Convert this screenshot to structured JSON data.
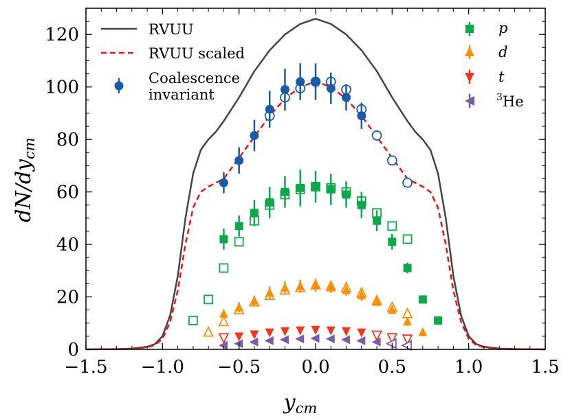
{
  "chart_data": {
    "type": "scatter",
    "xlabel": "y_cm",
    "ylabel": "dN/dy_cm",
    "xlim": [
      -1.5,
      1.5
    ],
    "ylim": [
      0,
      130
    ],
    "x_ticks": [
      -1.5,
      -1.0,
      -0.5,
      0.0,
      0.5,
      1.0,
      1.5
    ],
    "x_tick_labels": [
      "−1.5",
      "−1.0",
      "−0.5",
      "0.0",
      "0.5",
      "1.0",
      "1.5"
    ],
    "y_ticks": [
      0,
      20,
      40,
      60,
      80,
      100,
      120
    ],
    "y_tick_labels": [
      "0",
      "20",
      "40",
      "60",
      "80",
      "100",
      "120"
    ],
    "legend_left": {
      "placement": "top-left",
      "entries": [
        "RVUU",
        "RVUU scaled",
        "Coalescence",
        "invariant"
      ]
    },
    "legend_right": {
      "placement": "top-right",
      "entries": [
        "p",
        "d",
        "t",
        "3",
        "He"
      ]
    },
    "curves": [
      {
        "name": "RVUU",
        "color": "#444444",
        "style": "solid",
        "x": [
          -1.5,
          -1.3,
          -1.2,
          -1.1,
          -1.05,
          -1.0,
          -0.95,
          -0.9,
          -0.85,
          -0.8,
          -0.75,
          -0.7,
          -0.65,
          -0.6,
          -0.5,
          -0.4,
          -0.3,
          -0.2,
          -0.1,
          0.0,
          0.1,
          0.2,
          0.3,
          0.4,
          0.5,
          0.6,
          0.65,
          0.7,
          0.75,
          0.8,
          0.85,
          0.9,
          0.95,
          1.0,
          1.05,
          1.1,
          1.2,
          1.3,
          1.5
        ],
        "y": [
          0,
          0.1,
          0.3,
          1.0,
          2.0,
          5.0,
          13,
          28,
          50,
          67,
          76,
          80,
          83,
          87,
          96,
          106,
          114,
          120,
          124,
          126,
          124,
          120,
          114,
          106,
          96,
          87,
          83,
          80,
          76,
          67,
          50,
          28,
          13,
          5.0,
          2.0,
          1.0,
          0.3,
          0.1,
          0
        ]
      },
      {
        "name": "RVUU scaled",
        "color": "#e8141b",
        "style": "dashed",
        "x": [
          -1.5,
          -1.3,
          -1.2,
          -1.1,
          -1.05,
          -1.0,
          -0.95,
          -0.9,
          -0.85,
          -0.8,
          -0.75,
          -0.7,
          -0.65,
          -0.6,
          -0.5,
          -0.4,
          -0.3,
          -0.2,
          -0.1,
          0.0,
          0.1,
          0.2,
          0.3,
          0.4,
          0.5,
          0.6,
          0.65,
          0.7,
          0.75,
          0.8,
          0.85,
          0.9,
          0.95,
          1.0,
          1.05,
          1.1,
          1.2,
          1.3,
          1.5
        ],
        "y": [
          0,
          0.1,
          0.2,
          0.8,
          1.6,
          4.0,
          10.5,
          22.5,
          40,
          54,
          60,
          62,
          63.5,
          65,
          73,
          81,
          89,
          95.5,
          100,
          102,
          100,
          95.5,
          89,
          81,
          73,
          65,
          63.5,
          62,
          60,
          54,
          40,
          22.5,
          10.5,
          4.0,
          1.6,
          0.8,
          0.2,
          0.1,
          0
        ]
      }
    ],
    "series": [
      {
        "name": "Coalescence invariant",
        "color": "#1a5ba8",
        "marker": "circle",
        "filled": {
          "x": [
            -0.6,
            -0.5,
            -0.4,
            -0.3,
            -0.2,
            -0.1,
            0.0,
            0.1,
            0.2,
            0.3
          ],
          "y": [
            63.5,
            72,
            81.5,
            91.5,
            99,
            102,
            102,
            99.5,
            96,
            89
          ],
          "err": [
            4,
            5,
            6,
            7,
            8,
            7,
            7,
            6,
            5,
            5
          ]
        },
        "open": {
          "x": [
            -0.3,
            -0.2,
            -0.1,
            0.0,
            0.1,
            0.2,
            0.3,
            0.4,
            0.5,
            0.6
          ],
          "y": [
            89,
            96,
            99.5,
            102,
            102,
            99,
            91.5,
            81.5,
            72,
            63.5
          ]
        }
      },
      {
        "name": "p",
        "color": "#0ca84a",
        "marker": "square",
        "filled": {
          "x": [
            -0.6,
            -0.5,
            -0.4,
            -0.3,
            -0.2,
            -0.1,
            0.0,
            0.1,
            0.2,
            0.3,
            0.4,
            0.5,
            0.6,
            0.7,
            0.8
          ],
          "y": [
            42,
            47,
            52,
            56,
            60,
            61.5,
            62,
            61,
            59,
            55,
            49,
            41,
            31,
            19,
            11
          ],
          "err": [
            4,
            4,
            5,
            6,
            6,
            7,
            6,
            6,
            5,
            5,
            4,
            3,
            2,
            0,
            0
          ]
        },
        "open": {
          "x": [
            -0.8,
            -0.7,
            -0.6,
            -0.5,
            -0.4,
            -0.3,
            -0.2,
            -0.1,
            0.0,
            0.1,
            0.2,
            0.3,
            0.4,
            0.5,
            0.6
          ],
          "y": [
            11,
            19,
            31,
            41,
            49,
            55,
            59,
            61,
            62,
            61.5,
            60,
            56.5,
            52,
            47,
            42
          ]
        }
      },
      {
        "name": "d",
        "color": "#f7900b",
        "marker": "triangle-up",
        "filled": {
          "x": [
            -0.6,
            -0.5,
            -0.4,
            -0.3,
            -0.2,
            -0.1,
            0.0,
            0.1,
            0.2,
            0.3,
            0.4,
            0.5,
            0.6,
            0.7
          ],
          "y": [
            13.5,
            16,
            18.5,
            21.5,
            23.5,
            24,
            24.5,
            23.5,
            22.5,
            20.5,
            18,
            15,
            10.5,
            6.5
          ],
          "err": [
            1.5,
            2,
            2,
            2.5,
            2.5,
            2.5,
            2.5,
            2,
            2,
            2,
            1.5,
            1.5,
            1,
            0.5
          ]
        },
        "open": {
          "x": [
            -0.7,
            -0.6,
            -0.5,
            -0.4,
            -0.3,
            -0.2,
            -0.1,
            0.0,
            0.1,
            0.2,
            0.3,
            0.4,
            0.5,
            0.6
          ],
          "y": [
            6.5,
            10.5,
            15,
            18,
            20.5,
            22.5,
            23.5,
            24.5,
            24,
            23.5,
            21.5,
            18.5,
            16,
            13.5
          ]
        }
      },
      {
        "name": "t",
        "color": "#f2371c",
        "marker": "triangle-down",
        "filled": {
          "x": [
            -0.5,
            -0.4,
            -0.3,
            -0.2,
            -0.1,
            0.0,
            0.1,
            0.2,
            0.3
          ],
          "y": [
            5,
            5.8,
            6.5,
            7,
            7.3,
            7.5,
            7.3,
            7,
            6.5
          ],
          "err": [
            0.5,
            0.5,
            0.6,
            0.6,
            0.6,
            0.6,
            0.6,
            0.6,
            0.5
          ]
        },
        "open": {
          "x": [
            -0.6,
            0.4,
            0.5,
            0.6
          ],
          "y": [
            4.5,
            5.5,
            4.5,
            4.0
          ]
        }
      },
      {
        "name": "3He",
        "color": "#7b5aa6",
        "marker": "triangle-left",
        "filled": {
          "x": [
            -0.6,
            -0.5,
            -0.4,
            -0.3,
            -0.2,
            -0.1,
            0.0,
            0.1,
            0.2,
            0.3,
            0.4
          ],
          "y": [
            1.5,
            2.2,
            2.8,
            3.3,
            3.7,
            4.0,
            4.2,
            4.0,
            3.7,
            3.3,
            2.8
          ],
          "err": [
            0.3,
            0.3,
            0.3,
            0.4,
            0.4,
            0.4,
            0.4,
            0.4,
            0.4,
            0.3,
            0.3
          ]
        },
        "open": {
          "x": [
            0.5,
            0.6
          ],
          "y": [
            2.2,
            1.5
          ]
        }
      }
    ]
  }
}
